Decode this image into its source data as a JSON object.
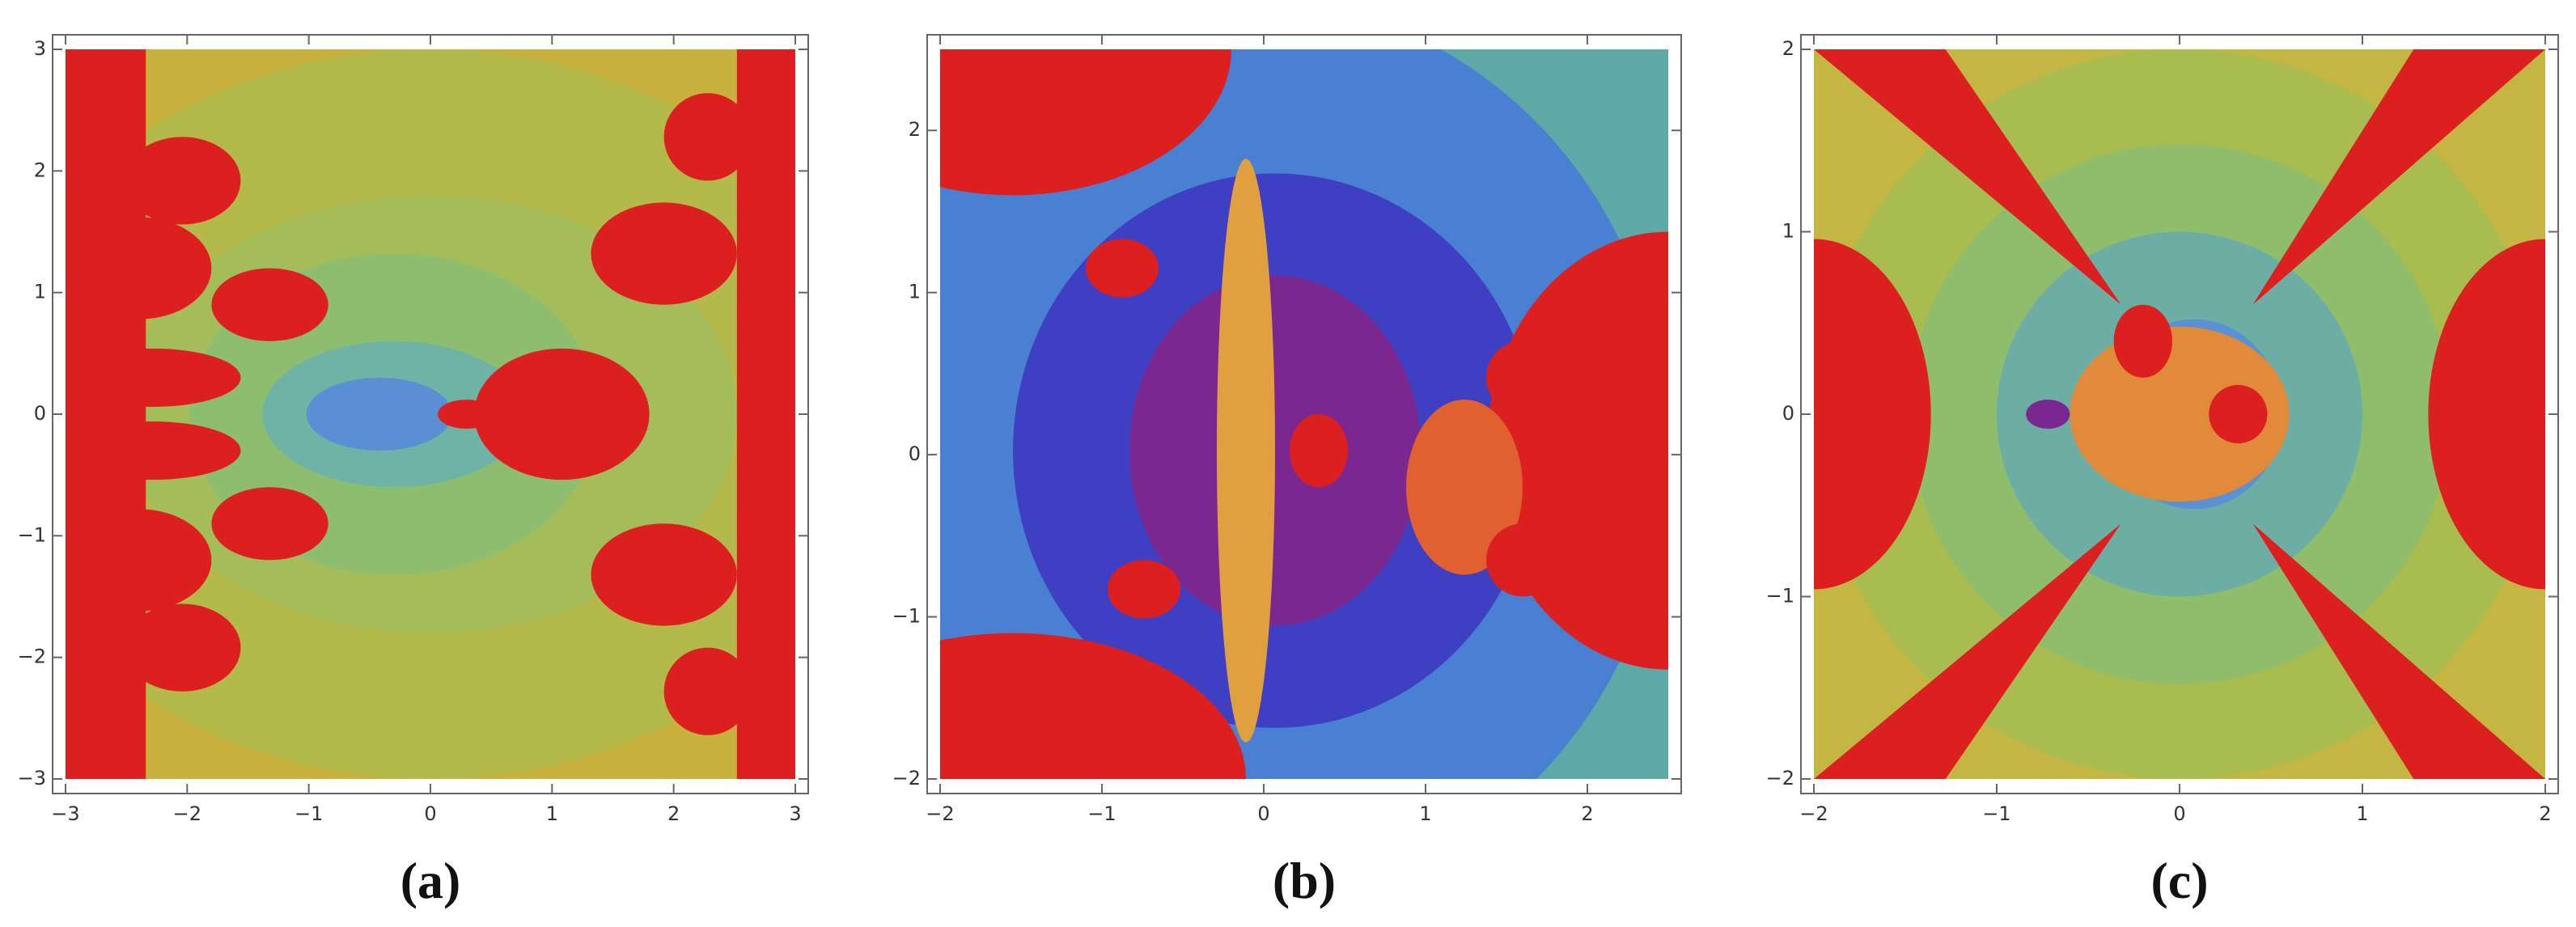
{
  "chart_data": [
    {
      "type": "image",
      "caption": "(a)",
      "xlim": [
        -3,
        3
      ],
      "ylim": [
        -3,
        3
      ],
      "xticks": [
        {
          "value": -3,
          "label": "−3"
        },
        {
          "value": -2,
          "label": "−2"
        },
        {
          "value": -1,
          "label": "−1"
        },
        0,
        1,
        2,
        3
      ],
      "yticks": [
        {
          "value": -3,
          "label": "−3"
        },
        {
          "value": -2,
          "label": "−2"
        },
        {
          "value": -1,
          "label": "−1"
        },
        0,
        1,
        2,
        3
      ]
    },
    {
      "type": "image",
      "caption": "(b)",
      "xlim": [
        -2,
        2.5
      ],
      "ylim": [
        -2,
        2.5
      ],
      "xticks": [
        {
          "value": -2,
          "label": "−2"
        },
        {
          "value": -1,
          "label": "−1"
        },
        0,
        1,
        2
      ],
      "yticks": [
        {
          "value": -2,
          "label": "−2"
        },
        {
          "value": -1,
          "label": "−1"
        },
        0,
        1,
        2
      ]
    },
    {
      "type": "image",
      "caption": "(c)",
      "xlim": [
        -2,
        2
      ],
      "ylim": [
        -2,
        2
      ],
      "xticks": [
        {
          "value": -2,
          "label": "−2"
        },
        {
          "value": -1,
          "label": "−1"
        },
        0,
        1,
        2
      ],
      "yticks": [
        {
          "value": -2,
          "label": "−2"
        },
        {
          "value": -1,
          "label": "−1"
        },
        0,
        1,
        2
      ]
    }
  ]
}
